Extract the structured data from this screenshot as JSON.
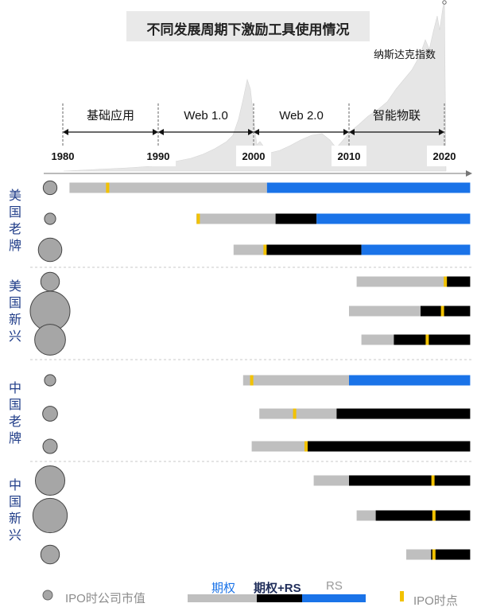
{
  "title": "不同发展周期下激励工具使用情况",
  "nasdaq_label": "纳斯达克指数",
  "colors": {
    "option": "#bfbfbf",
    "option_rs": "#000000",
    "rs": "#1a73e8",
    "ipo": "#f2c200",
    "index_fill": "#e6e6e6",
    "category_text": "#1f3c88",
    "circle": "#a6a6a6"
  },
  "eras": [
    {
      "label": "基础应用",
      "from": 1980,
      "to": 1990
    },
    {
      "label": "Web 1.0",
      "from": 1990,
      "to": 2000
    },
    {
      "label": "Web 2.0",
      "from": 2000,
      "to": 2010
    },
    {
      "label": "智能物联",
      "from": 2010,
      "to": 2020
    }
  ],
  "chart_data": {
    "type": "bar",
    "title": "不同发展周期下激励工具使用情况",
    "x_ticks": [
      "1980",
      "1990",
      "2000",
      "2010",
      "2020"
    ],
    "xlim": [
      1980,
      2023
    ],
    "groups": [
      {
        "label": "美国老牌",
        "companies": [
          {
            "ipo_market_cap_size": 0.12,
            "ipo_year": 1984.7,
            "segments": [
              {
                "tool": "期权",
                "from": 1980.7,
                "to": 2001.4
              },
              {
                "tool": "RS",
                "from": 2001.4,
                "to": 2023
              }
            ]
          },
          {
            "ipo_market_cap_size": 0.08,
            "ipo_year": 1994.2,
            "segments": [
              {
                "tool": "期权",
                "from": 1994.0,
                "to": 2002.3
              },
              {
                "tool": "期权+RS",
                "from": 2002.3,
                "to": 2006.6
              },
              {
                "tool": "RS",
                "from": 2006.6,
                "to": 2023
              }
            ]
          },
          {
            "ipo_market_cap_size": 0.35,
            "ipo_year": 2001.2,
            "segments": [
              {
                "tool": "期权",
                "from": 1997.9,
                "to": 2001.2
              },
              {
                "tool": "期权+RS",
                "from": 2001.2,
                "to": 2011.3
              },
              {
                "tool": "RS",
                "from": 2011.3,
                "to": 2023
              }
            ]
          }
        ]
      },
      {
        "label": "美国新兴",
        "companies": [
          {
            "ipo_market_cap_size": 0.22,
            "ipo_year": 2020.1,
            "segments": [
              {
                "tool": "期权",
                "from": 2010.8,
                "to": 2020.1
              },
              {
                "tool": "期权+RS",
                "from": 2020.1,
                "to": 2023
              }
            ]
          },
          {
            "ipo_market_cap_size": 1.0,
            "ipo_year": 2019.8,
            "segments": [
              {
                "tool": "期权",
                "from": 2010.0,
                "to": 2017.5
              },
              {
                "tool": "期权+RS",
                "from": 2017.5,
                "to": 2023
              }
            ]
          },
          {
            "ipo_market_cap_size": 0.6,
            "ipo_year": 2018.2,
            "segments": [
              {
                "tool": "期权",
                "from": 2011.3,
                "to": 2014.7
              },
              {
                "tool": "期权+RS",
                "from": 2014.7,
                "to": 2023
              }
            ]
          }
        ]
      },
      {
        "label": "中国老牌",
        "companies": [
          {
            "ipo_market_cap_size": 0.08,
            "ipo_year": 1999.8,
            "segments": [
              {
                "tool": "期权",
                "from": 1998.9,
                "to": 2010.0
              },
              {
                "tool": "RS",
                "from": 2010.0,
                "to": 2023
              }
            ]
          },
          {
            "ipo_market_cap_size": 0.14,
            "ipo_year": 2004.3,
            "segments": [
              {
                "tool": "期权",
                "from": 2000.6,
                "to": 2008.7
              },
              {
                "tool": "期权+RS",
                "from": 2008.7,
                "to": 2023
              }
            ]
          },
          {
            "ipo_market_cap_size": 0.13,
            "ipo_year": 2005.5,
            "segments": [
              {
                "tool": "期权",
                "from": 1999.8,
                "to": 2005.6
              },
              {
                "tool": "期权+RS",
                "from": 2005.6,
                "to": 2023
              }
            ]
          }
        ]
      },
      {
        "label": "中国新兴",
        "companies": [
          {
            "ipo_market_cap_size": 0.55,
            "ipo_year": 2018.8,
            "segments": [
              {
                "tool": "期权",
                "from": 2006.3,
                "to": 2010.0
              },
              {
                "tool": "期权+RS",
                "from": 2010.0,
                "to": 2023
              }
            ]
          },
          {
            "ipo_market_cap_size": 0.75,
            "ipo_year": 2018.9,
            "segments": [
              {
                "tool": "期权",
                "from": 2010.8,
                "to": 2012.8
              },
              {
                "tool": "期权+RS",
                "from": 2012.8,
                "to": 2023
              }
            ]
          },
          {
            "ipo_market_cap_size": 0.22,
            "ipo_year": 2018.9,
            "segments": [
              {
                "tool": "期权",
                "from": 2016.0,
                "to": 2018.6
              },
              {
                "tool": "期权+RS",
                "from": 2018.6,
                "to": 2023
              }
            ]
          }
        ]
      }
    ]
  },
  "legend": {
    "circle_label": "IPO时公司市值",
    "tool_labels": [
      "期权",
      "期权+RS",
      "RS"
    ],
    "ipo_label": "IPO时点"
  }
}
